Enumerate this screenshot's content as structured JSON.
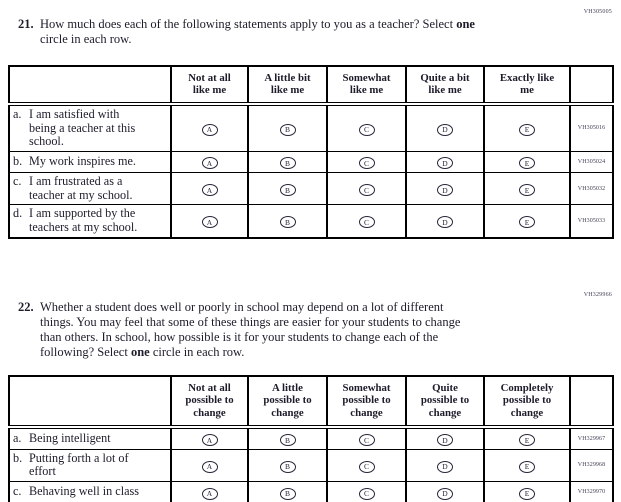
{
  "page": {
    "background": "#ffffff",
    "ink_color": "#1c1c2b",
    "border_color": "#000000",
    "code_color": "#3e3e54"
  },
  "questions": [
    {
      "accession": "VH305005",
      "number": "21.",
      "lines": [
        [
          {
            "t": "How much does each of the following statements apply to you as a teacher? Select "
          },
          {
            "t": "one",
            "b": true
          }
        ],
        [
          {
            "t": "circle in each row."
          }
        ]
      ],
      "table": {
        "columns": [
          [
            "Not at all",
            "like me"
          ],
          [
            "A little bit",
            "like me"
          ],
          [
            "Somewhat",
            "like me"
          ],
          [
            "Quite a bit",
            "like me"
          ],
          [
            "Exactly like",
            "me"
          ]
        ],
        "option_letters": [
          "A",
          "B",
          "C",
          "D",
          "E"
        ],
        "rows": [
          {
            "label": "a.",
            "statement_lines": [
              "I am satisfied with",
              "being a teacher at this",
              "school."
            ],
            "code": "VH305016"
          },
          {
            "label": "b.",
            "statement_lines": [
              "My work inspires me."
            ],
            "code": "VH305024"
          },
          {
            "label": "c.",
            "statement_lines": [
              "I am frustrated as a",
              "teacher at my school."
            ],
            "code": "VH305032"
          },
          {
            "label": "d.",
            "statement_lines": [
              "I am supported by the",
              "teachers at my school."
            ],
            "code": "VH305033"
          }
        ]
      }
    },
    {
      "accession": "VH329966",
      "number": "22.",
      "lines": [
        [
          {
            "t": "Whether a student does well or poorly in school may depend on a lot of different"
          }
        ],
        [
          {
            "t": "things. You may feel that some of these things are easier for your students to change"
          }
        ],
        [
          {
            "t": "than others. In school, how possible is it for your students to change each of the"
          }
        ],
        [
          {
            "t": "following? Select "
          },
          {
            "t": "one",
            "b": true
          },
          {
            "t": " circle in each row."
          }
        ]
      ],
      "table": {
        "columns": [
          [
            "Not at all",
            "possible to",
            "change"
          ],
          [
            "A little",
            "possible to",
            "change"
          ],
          [
            "Somewhat",
            "possible to",
            "change"
          ],
          [
            "Quite",
            "possible to",
            "change"
          ],
          [
            "Completely",
            "possible to",
            "change"
          ]
        ],
        "option_letters": [
          "A",
          "B",
          "C",
          "D",
          "E"
        ],
        "rows": [
          {
            "label": "a.",
            "statement_lines": [
              "Being intelligent"
            ],
            "code": "VH329967"
          },
          {
            "label": "b.",
            "statement_lines": [
              "Putting forth a lot of",
              "effort"
            ],
            "code": "VH329968"
          },
          {
            "label": "c.",
            "statement_lines": [
              "Behaving well in class"
            ],
            "code": "VH329970"
          }
        ]
      }
    }
  ]
}
